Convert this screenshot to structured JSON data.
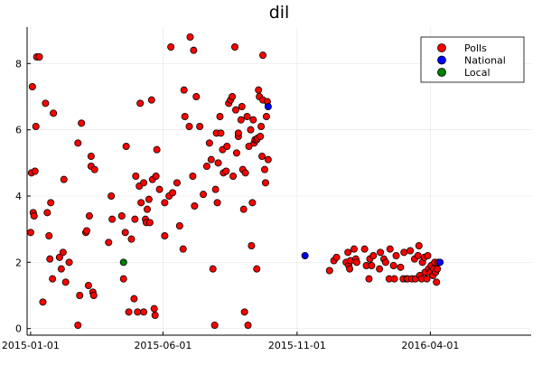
{
  "chart_data": {
    "type": "scatter",
    "title": "dil",
    "xlabel": "",
    "ylabel": "",
    "x_axis_type": "date",
    "xlim": [
      "2014-12-28",
      "2016-07-25"
    ],
    "ylim": [
      -0.2,
      9.1
    ],
    "x_ticks": [
      {
        "value": "2015-01-01",
        "label": "2015-01-01"
      },
      {
        "value": "2015-06-01",
        "label": "2015-06-01"
      },
      {
        "value": "2015-11-01",
        "label": "2015-11-01"
      },
      {
        "value": "2016-04-01",
        "label": "2016-04-01"
      }
    ],
    "y_ticks": [
      0,
      2,
      4,
      6,
      8
    ],
    "grid": true,
    "legend_position": "top-right",
    "series": [
      {
        "name": "Polls",
        "color": "#ff0000",
        "points": [
          [
            "2015-01-01",
            2.9
          ],
          [
            "2015-01-02",
            4.7
          ],
          [
            "2015-01-03",
            7.3
          ],
          [
            "2015-01-04",
            3.5
          ],
          [
            "2015-01-05",
            3.4
          ],
          [
            "2015-01-06",
            4.75
          ],
          [
            "2015-01-07",
            6.1
          ],
          [
            "2015-01-08",
            8.2
          ],
          [
            "2015-01-11",
            8.2
          ],
          [
            "2015-01-15",
            0.8
          ],
          [
            "2015-01-18",
            6.8
          ],
          [
            "2015-01-20",
            3.5
          ],
          [
            "2015-01-22",
            2.8
          ],
          [
            "2015-01-23",
            2.1
          ],
          [
            "2015-01-24",
            3.8
          ],
          [
            "2015-01-26",
            1.5
          ],
          [
            "2015-01-27",
            6.5
          ],
          [
            "2015-02-03",
            2.15
          ],
          [
            "2015-02-05",
            1.8
          ],
          [
            "2015-02-07",
            2.3
          ],
          [
            "2015-02-08",
            4.5
          ],
          [
            "2015-02-10",
            1.4
          ],
          [
            "2015-02-14",
            2.0
          ],
          [
            "2015-02-24",
            0.1
          ],
          [
            "2015-02-24",
            5.6
          ],
          [
            "2015-02-26",
            1.0
          ],
          [
            "2015-02-28",
            6.2
          ],
          [
            "2015-03-05",
            2.9
          ],
          [
            "2015-03-06",
            2.95
          ],
          [
            "2015-03-08",
            1.3
          ],
          [
            "2015-03-09",
            3.4
          ],
          [
            "2015-03-11",
            5.2
          ],
          [
            "2015-03-11",
            4.9
          ],
          [
            "2015-03-13",
            1.1
          ],
          [
            "2015-03-14",
            1.0
          ],
          [
            "2015-03-15",
            4.8
          ],
          [
            "2015-03-31",
            2.6
          ],
          [
            "2015-04-03",
            4.0
          ],
          [
            "2015-04-04",
            3.3
          ],
          [
            "2015-04-15",
            3.4
          ],
          [
            "2015-04-17",
            1.5
          ],
          [
            "2015-04-19",
            2.9
          ],
          [
            "2015-04-20",
            5.5
          ],
          [
            "2015-04-23",
            0.5
          ],
          [
            "2015-04-26",
            2.7
          ],
          [
            "2015-04-29",
            0.9
          ],
          [
            "2015-04-30",
            3.3
          ],
          [
            "2015-05-01",
            4.6
          ],
          [
            "2015-05-03",
            0.5
          ],
          [
            "2015-05-05",
            4.3
          ],
          [
            "2015-05-06",
            6.8
          ],
          [
            "2015-05-07",
            3.8
          ],
          [
            "2015-05-10",
            4.4
          ],
          [
            "2015-05-10",
            0.5
          ],
          [
            "2015-05-12",
            3.3
          ],
          [
            "2015-05-13",
            3.2
          ],
          [
            "2015-05-14",
            3.6
          ],
          [
            "2015-05-16",
            3.9
          ],
          [
            "2015-05-17",
            3.2
          ],
          [
            "2015-05-19",
            6.9
          ],
          [
            "2015-05-20",
            4.5
          ],
          [
            "2015-05-22",
            0.6
          ],
          [
            "2015-05-23",
            0.4
          ],
          [
            "2015-05-24",
            4.6
          ],
          [
            "2015-05-25",
            5.4
          ],
          [
            "2015-05-28",
            4.2
          ],
          [
            "2015-06-03",
            2.8
          ],
          [
            "2015-06-03",
            3.8
          ],
          [
            "2015-06-08",
            4.0
          ],
          [
            "2015-06-10",
            8.5
          ],
          [
            "2015-06-12",
            4.1
          ],
          [
            "2015-06-17",
            4.4
          ],
          [
            "2015-06-20",
            3.1
          ],
          [
            "2015-06-24",
            2.4
          ],
          [
            "2015-06-25",
            7.2
          ],
          [
            "2015-06-26",
            6.4
          ],
          [
            "2015-07-01",
            6.1
          ],
          [
            "2015-07-02",
            8.8
          ],
          [
            "2015-07-05",
            4.6
          ],
          [
            "2015-07-06",
            8.4
          ],
          [
            "2015-07-07",
            3.7
          ],
          [
            "2015-07-09",
            7.0
          ],
          [
            "2015-07-13",
            6.1
          ],
          [
            "2015-07-17",
            4.05
          ],
          [
            "2015-07-21",
            4.9
          ],
          [
            "2015-07-24",
            5.6
          ],
          [
            "2015-07-26",
            5.1
          ],
          [
            "2015-07-28",
            1.8
          ],
          [
            "2015-07-30",
            0.1
          ],
          [
            "2015-07-31",
            4.2
          ],
          [
            "2015-08-01",
            5.9
          ],
          [
            "2015-08-02",
            3.8
          ],
          [
            "2015-08-03",
            5.0
          ],
          [
            "2015-08-05",
            6.4
          ],
          [
            "2015-08-06",
            5.9
          ],
          [
            "2015-08-08",
            5.4
          ],
          [
            "2015-08-09",
            4.7
          ],
          [
            "2015-08-12",
            4.75
          ],
          [
            "2015-08-13",
            5.5
          ],
          [
            "2015-08-15",
            6.8
          ],
          [
            "2015-08-17",
            6.9
          ],
          [
            "2015-08-19",
            7.0
          ],
          [
            "2015-08-20",
            4.6
          ],
          [
            "2015-08-22",
            8.5
          ],
          [
            "2015-08-23",
            6.6
          ],
          [
            "2015-08-24",
            5.3
          ],
          [
            "2015-08-26",
            5.8
          ],
          [
            "2015-08-26",
            5.9
          ],
          [
            "2015-08-29",
            6.3
          ],
          [
            "2015-08-30",
            6.7
          ],
          [
            "2015-08-31",
            4.8
          ],
          [
            "2015-09-01",
            3.6
          ],
          [
            "2015-09-02",
            0.5
          ],
          [
            "2015-09-03",
            4.7
          ],
          [
            "2015-09-05",
            6.4
          ],
          [
            "2015-09-06",
            0.1
          ],
          [
            "2015-09-07",
            5.5
          ],
          [
            "2015-09-09",
            6.0
          ],
          [
            "2015-09-10",
            2.5
          ],
          [
            "2015-09-11",
            3.8
          ],
          [
            "2015-09-12",
            6.3
          ],
          [
            "2015-09-13",
            5.6
          ],
          [
            "2015-09-14",
            5.7
          ],
          [
            "2015-09-16",
            1.8
          ],
          [
            "2015-09-16",
            5.7
          ],
          [
            "2015-09-17",
            5.75
          ],
          [
            "2015-09-18",
            7.2
          ],
          [
            "2015-09-19",
            7.0
          ],
          [
            "2015-09-20",
            5.8
          ],
          [
            "2015-09-21",
            6.1
          ],
          [
            "2015-09-22",
            5.2
          ],
          [
            "2015-09-23",
            6.9
          ],
          [
            "2015-09-23",
            8.25
          ],
          [
            "2015-09-25",
            4.8
          ],
          [
            "2015-09-26",
            4.4
          ],
          [
            "2015-09-27",
            6.4
          ],
          [
            "2015-09-28",
            6.85
          ],
          [
            "2015-09-29",
            5.1
          ],
          [
            "2015-12-08",
            1.75
          ],
          [
            "2015-12-13",
            2.05
          ],
          [
            "2015-12-16",
            2.15
          ],
          [
            "2015-12-27",
            2.0
          ],
          [
            "2015-12-29",
            2.3
          ],
          [
            "2015-12-30",
            1.9
          ],
          [
            "2015-12-31",
            1.8
          ],
          [
            "2016-01-01",
            2.05
          ],
          [
            "2016-01-05",
            2.4
          ],
          [
            "2016-01-07",
            2.1
          ],
          [
            "2016-01-08",
            2.0
          ],
          [
            "2016-01-17",
            2.4
          ],
          [
            "2016-01-19",
            1.9
          ],
          [
            "2016-01-22",
            1.5
          ],
          [
            "2016-01-23",
            2.1
          ],
          [
            "2016-01-25",
            1.9
          ],
          [
            "2016-01-27",
            2.2
          ],
          [
            "2016-02-03",
            1.8
          ],
          [
            "2016-02-04",
            2.3
          ],
          [
            "2016-02-08",
            2.1
          ],
          [
            "2016-02-10",
            2.0
          ],
          [
            "2016-02-14",
            1.5
          ],
          [
            "2016-02-15",
            2.4
          ],
          [
            "2016-02-19",
            1.9
          ],
          [
            "2016-02-20",
            1.5
          ],
          [
            "2016-02-22",
            2.2
          ],
          [
            "2016-02-27",
            1.85
          ],
          [
            "2016-03-01",
            1.5
          ],
          [
            "2016-03-02",
            2.3
          ],
          [
            "2016-03-05",
            1.5
          ],
          [
            "2016-03-06",
            1.5
          ],
          [
            "2016-03-09",
            2.35
          ],
          [
            "2016-03-11",
            1.5
          ],
          [
            "2016-03-14",
            2.1
          ],
          [
            "2016-03-15",
            1.5
          ],
          [
            "2016-03-18",
            2.2
          ],
          [
            "2016-03-19",
            2.5
          ],
          [
            "2016-03-20",
            1.6
          ],
          [
            "2016-03-22",
            1.5
          ],
          [
            "2016-03-23",
            2.0
          ],
          [
            "2016-03-25",
            2.15
          ],
          [
            "2016-03-26",
            1.7
          ],
          [
            "2016-03-28",
            1.5
          ],
          [
            "2016-03-29",
            2.2
          ],
          [
            "2016-03-30",
            1.8
          ],
          [
            "2016-04-01",
            1.7
          ],
          [
            "2016-04-02",
            1.9
          ],
          [
            "2016-04-04",
            1.6
          ],
          [
            "2016-04-05",
            1.8
          ],
          [
            "2016-04-06",
            2.0
          ],
          [
            "2016-04-07",
            1.7
          ],
          [
            "2016-04-08",
            1.4
          ],
          [
            "2016-04-09",
            1.8
          ],
          [
            "2016-04-10",
            2.0
          ]
        ]
      },
      {
        "name": "National",
        "color": "#0000ff",
        "points": [
          [
            "2015-09-29",
            6.7
          ],
          [
            "2015-11-10",
            2.2
          ],
          [
            "2016-04-12",
            2.0
          ]
        ]
      },
      {
        "name": "Local",
        "color": "#008000",
        "points": [
          [
            "2015-04-17",
            2.0
          ]
        ]
      }
    ]
  }
}
